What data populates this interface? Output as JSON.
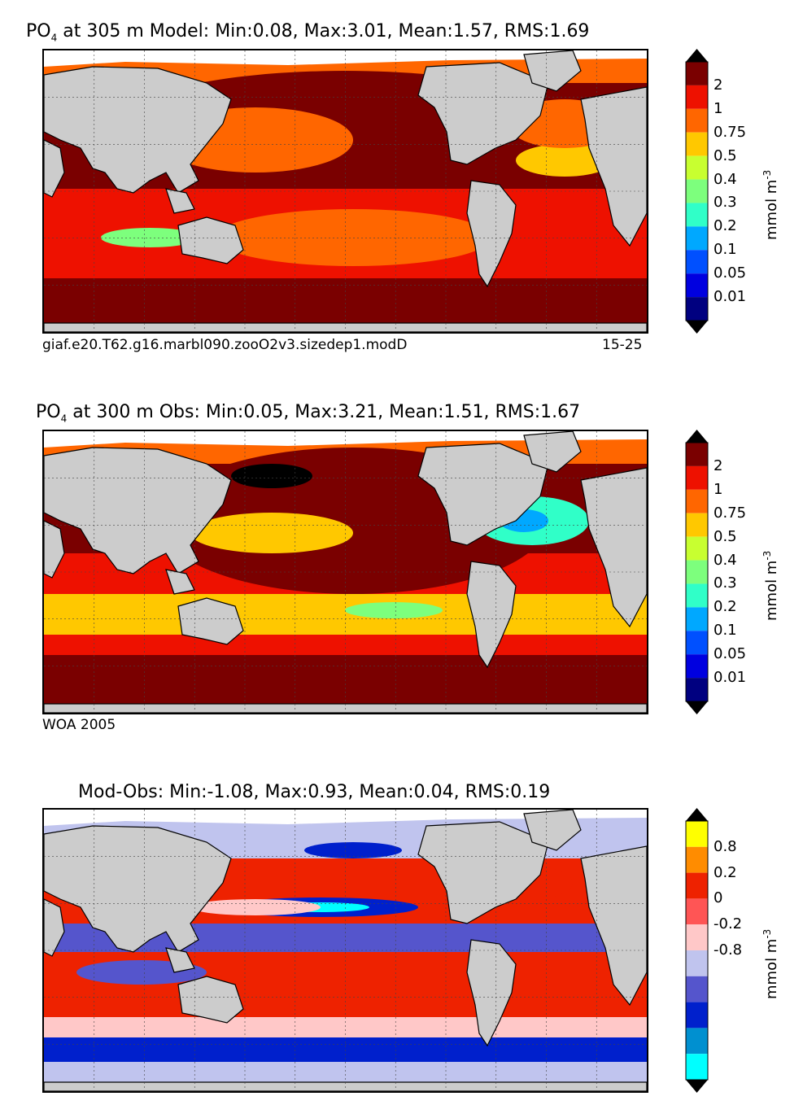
{
  "panels": [
    {
      "title_prefix": "PO",
      "title_sub": "4",
      "title_rest": " at 305 m Model: Min:0.08, Max:3.01, Mean:1.57, RMS:1.69",
      "left_note": "giaf.e20.T62.g16.marbl090.zooO2v3.sizedep1.modD",
      "right_note": "15-25"
    },
    {
      "title_prefix": "PO",
      "title_sub": "4",
      "title_rest": " at 300 m Obs: Min:0.05, Max:3.21, Mean:1.51, RMS:1.67",
      "left_note": "WOA 2005",
      "right_note": ""
    },
    {
      "title_prefix": "",
      "title_sub": "",
      "title_rest": "Mod-Obs: Min:-1.08, Max:0.93, Mean:0.04, RMS:0.19",
      "left_note": "",
      "right_note": ""
    }
  ],
  "colorbars": {
    "po4": {
      "unit": "mmol m",
      "unit_sup": "-3",
      "ticks": [
        "2",
        "1",
        "0.75",
        "0.5",
        "0.4",
        "0.3",
        "0.2",
        "0.1",
        "0.05",
        "0.01"
      ],
      "colors": [
        "#7a0000",
        "#ee1100",
        "#ff6600",
        "#ffc800",
        "#c8ff30",
        "#7dff7d",
        "#30ffc8",
        "#00a8ff",
        "#0050ff",
        "#0000e0",
        "#000080"
      ],
      "over_color": "#000000",
      "under_color": "#000000"
    },
    "diff": {
      "unit": "mmol m",
      "unit_sup": "-3",
      "ticks": [
        "0.8",
        "0.2",
        "0",
        "-0.2",
        "-0.8"
      ],
      "colors": [
        "#ffff00",
        "#ff8c00",
        "#ee2200",
        "#ff5555",
        "#ffc8c8",
        "#c0c4ee",
        "#5555cc",
        "#0020cc",
        "#0090d0",
        "#00ffff"
      ],
      "over_color": "#000000",
      "under_color": "#000000"
    }
  }
}
